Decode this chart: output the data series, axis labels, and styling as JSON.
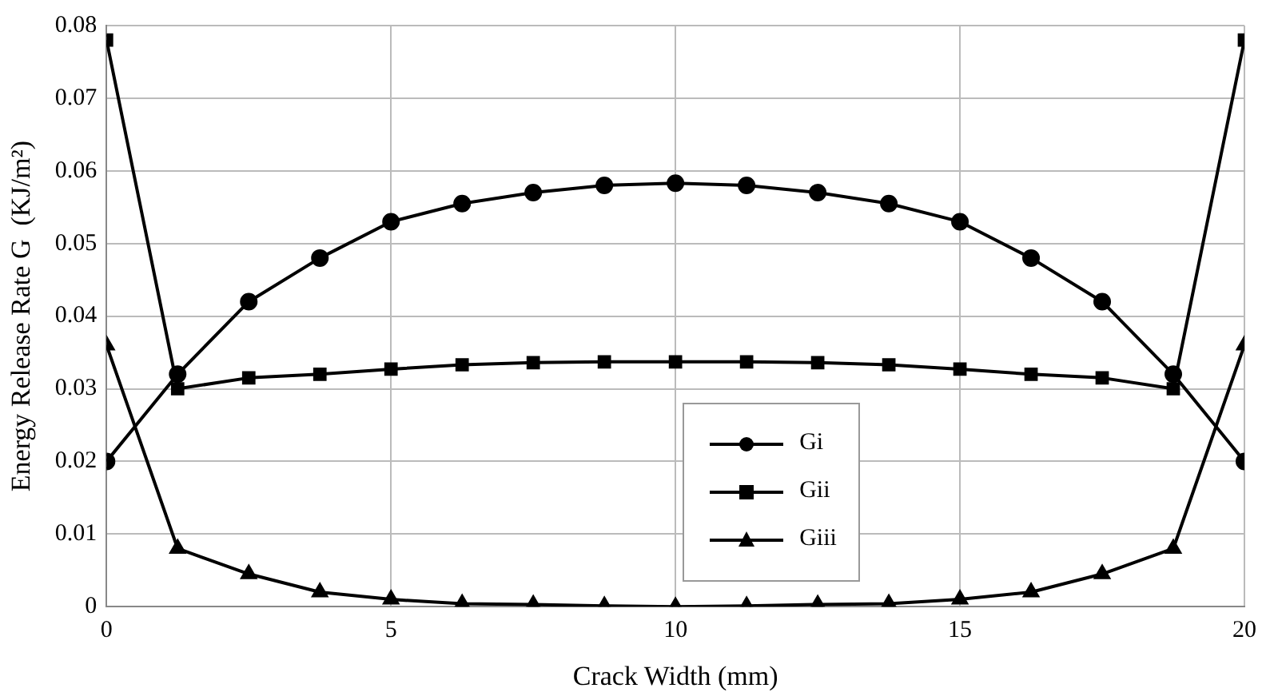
{
  "chart_data": {
    "type": "line",
    "xlabel": "Crack Width (mm)",
    "ylabel": "Energy Release Rate G  (KJ/m²)",
    "x": [
      0,
      1.25,
      2.5,
      3.75,
      5,
      6.25,
      7.5,
      8.75,
      10,
      11.25,
      12.5,
      13.75,
      15,
      16.25,
      17.5,
      18.75,
      20
    ],
    "xlim": [
      0,
      20
    ],
    "xticks": [
      0,
      5,
      10,
      15,
      20
    ],
    "ylim": [
      0,
      0.08
    ],
    "yticks": [
      0,
      0.01,
      0.02,
      0.03,
      0.04,
      0.05,
      0.06,
      0.07,
      0.08
    ],
    "grid": true,
    "legend": "bottom",
    "line_style": "solid",
    "series": [
      {
        "name": "Gi",
        "color": "#000000",
        "marker": "circle",
        "values": [
          0.02,
          0.032,
          0.042,
          0.048,
          0.053,
          0.0555,
          0.057,
          0.058,
          0.0583,
          0.058,
          0.057,
          0.0555,
          0.053,
          0.048,
          0.042,
          0.032,
          0.02
        ]
      },
      {
        "name": "Gii",
        "color": "#000000",
        "marker": "square",
        "values": [
          0.078,
          0.03,
          0.0315,
          0.032,
          0.0327,
          0.0333,
          0.0336,
          0.0337,
          0.0337,
          0.0337,
          0.0336,
          0.0333,
          0.0327,
          0.032,
          0.0315,
          0.03,
          0.078
        ]
      },
      {
        "name": "Giii",
        "color": "#000000",
        "marker": "triangle",
        "values": [
          0.036,
          0.008,
          0.0045,
          0.002,
          0.001,
          0.0004,
          0.0003,
          0.0001,
          0,
          0.0001,
          0.0003,
          0.0004,
          0.001,
          0.002,
          0.0045,
          0.008,
          0.036
        ]
      }
    ]
  }
}
